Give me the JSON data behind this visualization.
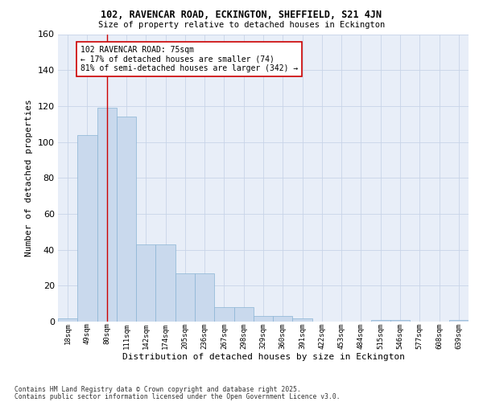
{
  "title1": "102, RAVENCAR ROAD, ECKINGTON, SHEFFIELD, S21 4JN",
  "title2": "Size of property relative to detached houses in Eckington",
  "xlabel": "Distribution of detached houses by size in Eckington",
  "ylabel": "Number of detached properties",
  "bar_labels": [
    "18sqm",
    "49sqm",
    "80sqm",
    "111sqm",
    "142sqm",
    "174sqm",
    "205sqm",
    "236sqm",
    "267sqm",
    "298sqm",
    "329sqm",
    "360sqm",
    "391sqm",
    "422sqm",
    "453sqm",
    "484sqm",
    "515sqm",
    "546sqm",
    "577sqm",
    "608sqm",
    "639sqm"
  ],
  "bar_values": [
    2,
    104,
    119,
    114,
    43,
    43,
    27,
    27,
    8,
    8,
    3,
    3,
    2,
    0,
    0,
    0,
    1,
    1,
    0,
    0,
    1
  ],
  "bar_color": "#c9d9ed",
  "bar_edge_color": "#8ab4d4",
  "grid_color": "#c8d4e8",
  "bg_color": "#e8eef8",
  "vline_x": 2,
  "vline_color": "#cc0000",
  "annotation_text": "102 RAVENCAR ROAD: 75sqm\n← 17% of detached houses are smaller (74)\n81% of semi-detached houses are larger (342) →",
  "annotation_box_facecolor": "#ffffff",
  "annotation_box_edgecolor": "#cc0000",
  "ylim": [
    0,
    160
  ],
  "yticks": [
    0,
    20,
    40,
    60,
    80,
    100,
    120,
    140,
    160
  ],
  "footer1": "Contains HM Land Registry data © Crown copyright and database right 2025.",
  "footer2": "Contains public sector information licensed under the Open Government Licence v3.0."
}
